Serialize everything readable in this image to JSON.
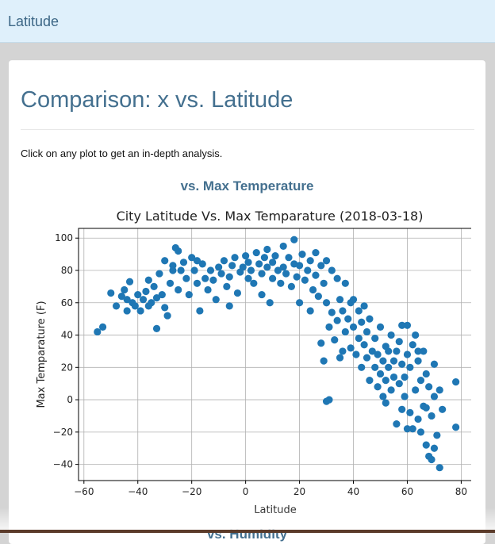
{
  "navbar": {
    "brand": "Latitude"
  },
  "main": {
    "title": "Comparison: x vs. Latitude",
    "intro": "Click on any plot to get an in-depth analysis.",
    "plot_heading": "vs. Max Temperature",
    "next_heading": "vs. Humidity"
  },
  "colors": {
    "marker": "#1f77b4",
    "heading": "#44708f",
    "navbar_bg": "#dff0fb"
  },
  "chart_data": {
    "type": "scatter",
    "title": "City Latitude Vs. Max Temparature (2018-03-18)",
    "xlabel": "Latitude",
    "ylabel": "Max Temparature (F)",
    "xlim": [
      -62,
      84
    ],
    "ylim": [
      -50,
      106
    ],
    "xticks": [
      -60,
      -40,
      -20,
      0,
      20,
      40,
      60,
      80
    ],
    "yticks": [
      -40,
      -20,
      0,
      20,
      40,
      60,
      80,
      100
    ],
    "grid": true,
    "legend": "none",
    "points": [
      [
        -55,
        42
      ],
      [
        -53,
        45
      ],
      [
        -46,
        64
      ],
      [
        -45,
        68
      ],
      [
        -44,
        55
      ],
      [
        -43,
        73
      ],
      [
        -42,
        60
      ],
      [
        -41,
        58
      ],
      [
        -40,
        65
      ],
      [
        -39,
        55
      ],
      [
        -38,
        62
      ],
      [
        -37,
        67
      ],
      [
        -36,
        58
      ],
      [
        -35,
        60
      ],
      [
        -34,
        70
      ],
      [
        -33,
        63
      ],
      [
        -33,
        44
      ],
      [
        -32,
        78
      ],
      [
        -31,
        65
      ],
      [
        -30,
        86
      ],
      [
        -30,
        57
      ],
      [
        -29,
        52
      ],
      [
        -28,
        72
      ],
      [
        -27,
        83
      ],
      [
        -26,
        94
      ],
      [
        -25,
        92
      ],
      [
        -25,
        68
      ],
      [
        -24,
        80
      ],
      [
        -23,
        85
      ],
      [
        -22,
        75
      ],
      [
        -21,
        65
      ],
      [
        -20,
        88
      ],
      [
        -19,
        80
      ],
      [
        -18,
        72
      ],
      [
        -17,
        55
      ],
      [
        -16,
        84
      ],
      [
        -15,
        75
      ],
      [
        -14,
        68
      ],
      [
        -13,
        80
      ],
      [
        -12,
        74
      ],
      [
        -11,
        62
      ],
      [
        -10,
        82
      ],
      [
        -9,
        78
      ],
      [
        -8,
        86
      ],
      [
        -7,
        70
      ],
      [
        -6,
        76
      ],
      [
        -5,
        83
      ],
      [
        -4,
        88
      ],
      [
        -3,
        66
      ],
      [
        -2,
        79
      ],
      [
        -1,
        82
      ],
      [
        0,
        89
      ],
      [
        1,
        75
      ],
      [
        1,
        85
      ],
      [
        2,
        80
      ],
      [
        3,
        72
      ],
      [
        4,
        91
      ],
      [
        5,
        84
      ],
      [
        6,
        78
      ],
      [
        6,
        65
      ],
      [
        7,
        88
      ],
      [
        8,
        82
      ],
      [
        9,
        60
      ],
      [
        10,
        85
      ],
      [
        10,
        75
      ],
      [
        11,
        89
      ],
      [
        12,
        80
      ],
      [
        13,
        72
      ],
      [
        14,
        95
      ],
      [
        14,
        82
      ],
      [
        15,
        78
      ],
      [
        16,
        88
      ],
      [
        17,
        70
      ],
      [
        18,
        99
      ],
      [
        18,
        84
      ],
      [
        19,
        76
      ],
      [
        20,
        60
      ],
      [
        20,
        83
      ],
      [
        21,
        90
      ],
      [
        22,
        74
      ],
      [
        23,
        80
      ],
      [
        24,
        86
      ],
      [
        25,
        68
      ],
      [
        26,
        91
      ],
      [
        26,
        77
      ],
      [
        27,
        64
      ],
      [
        28,
        83
      ],
      [
        28,
        35
      ],
      [
        29,
        72
      ],
      [
        29,
        24
      ],
      [
        30,
        60
      ],
      [
        30,
        86
      ],
      [
        31,
        45
      ],
      [
        31,
        0
      ],
      [
        32,
        54
      ],
      [
        32,
        80
      ],
      [
        33,
        37
      ],
      [
        34,
        49
      ],
      [
        34,
        75
      ],
      [
        35,
        62
      ],
      [
        35,
        26
      ],
      [
        36,
        55
      ],
      [
        37,
        42
      ],
      [
        37,
        72
      ],
      [
        38,
        50
      ],
      [
        39,
        60
      ],
      [
        39,
        32
      ],
      [
        40,
        45
      ],
      [
        40,
        62
      ],
      [
        41,
        28
      ],
      [
        42,
        38
      ],
      [
        42,
        55
      ],
      [
        43,
        48
      ],
      [
        43,
        20
      ],
      [
        44,
        34
      ],
      [
        45,
        42
      ],
      [
        45,
        26
      ],
      [
        46,
        50
      ],
      [
        46,
        12
      ],
      [
        47,
        30
      ],
      [
        48,
        20
      ],
      [
        48,
        38
      ],
      [
        49,
        8
      ],
      [
        49,
        28
      ],
      [
        50,
        16
      ],
      [
        50,
        45
      ],
      [
        51,
        24
      ],
      [
        51,
        2
      ],
      [
        52,
        33
      ],
      [
        52,
        12
      ],
      [
        53,
        20
      ],
      [
        53,
        30
      ],
      [
        54,
        6
      ],
      [
        54,
        40
      ],
      [
        55,
        14
      ],
      [
        55,
        24
      ],
      [
        56,
        30
      ],
      [
        56,
        -15
      ],
      [
        57,
        10
      ],
      [
        57,
        36
      ],
      [
        58,
        22
      ],
      [
        58,
        -6
      ],
      [
        59,
        14
      ],
      [
        59,
        2
      ],
      [
        60,
        28
      ],
      [
        60,
        46
      ],
      [
        61,
        -8
      ],
      [
        61,
        20
      ],
      [
        62,
        34
      ],
      [
        62,
        -18
      ],
      [
        63,
        6
      ],
      [
        63,
        40
      ],
      [
        64,
        -12
      ],
      [
        64,
        24
      ],
      [
        65,
        12
      ],
      [
        65,
        -20
      ],
      [
        66,
        30
      ],
      [
        66,
        -4
      ],
      [
        67,
        -28
      ],
      [
        67,
        16
      ],
      [
        68,
        -35
      ],
      [
        68,
        8
      ],
      [
        69,
        -10
      ],
      [
        69,
        -37
      ],
      [
        70,
        2
      ],
      [
        70,
        22
      ],
      [
        71,
        -22
      ],
      [
        72,
        -42
      ],
      [
        72,
        6
      ],
      [
        73,
        -6
      ],
      [
        78,
        -17
      ],
      [
        78,
        11
      ],
      [
        -50,
        66
      ],
      [
        -48,
        58
      ],
      [
        -44,
        62
      ],
      [
        -36,
        74
      ],
      [
        -27,
        80
      ],
      [
        -18,
        86
      ],
      [
        -6,
        58
      ],
      [
        8,
        93
      ],
      [
        24,
        55
      ],
      [
        36,
        30
      ],
      [
        44,
        58
      ],
      [
        52,
        -2
      ],
      [
        58,
        46
      ],
      [
        60,
        -18
      ],
      [
        64,
        30
      ],
      [
        67,
        -5
      ],
      [
        70,
        -30
      ],
      [
        30,
        -1
      ]
    ]
  }
}
